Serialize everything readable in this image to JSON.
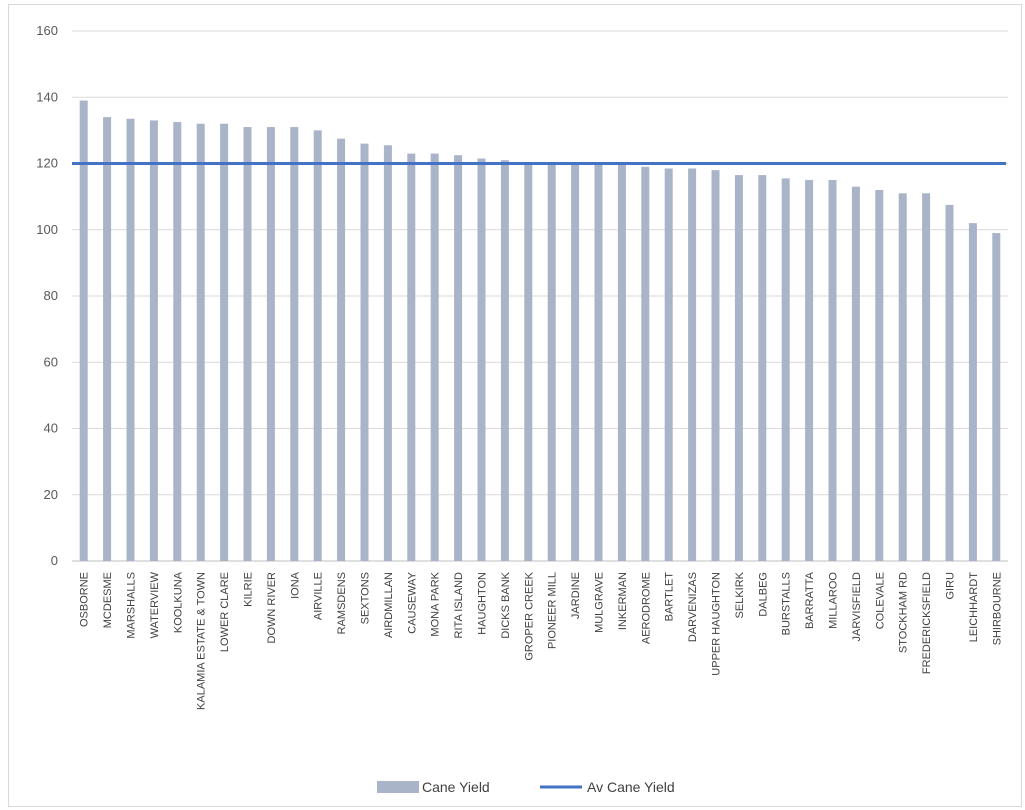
{
  "chart_data": {
    "type": "bar",
    "categories": [
      "OSBORNE",
      "MCDESME",
      "MARSHALLS",
      "WATERVIEW",
      "KOOLKUNA",
      "KALAMIA ESTATE & TOWN",
      "LOWER CLARE",
      "KILRIE",
      "DOWN RIVER",
      "IONA",
      "AIRVILLE",
      "RAMSDENS",
      "SEXTONS",
      "AIRDMILLAN",
      "CAUSEWAY",
      "MONA PARK",
      "RITA ISLAND",
      "HAUGHTON",
      "DICKS BANK",
      "GROPER CREEK",
      "PIONEER MILL",
      "JARDINE",
      "MULGRAVE",
      "INKERMAN",
      "AERODROME",
      "BARTLET",
      "DARVENIZAS",
      "UPPER HAUGHTON",
      "SELKIRK",
      "DALBEG",
      "BURSTALLS",
      "BARRATTA",
      "MILLAROO",
      "JARVISFIELD",
      "COLEVALE",
      "STOCKHAM RD",
      "FREDERICKSFIELD",
      "GIRU",
      "LEICHHARDT",
      "SHIRBOURNE"
    ],
    "series": [
      {
        "name": "Cane Yield",
        "kind": "bar",
        "color": "#a9b4c8",
        "values": [
          139,
          134,
          133.5,
          133,
          132.5,
          132,
          132,
          131,
          131,
          131,
          130,
          127.5,
          126,
          125.5,
          123,
          123,
          122.5,
          121.5,
          121,
          120,
          120,
          120,
          120,
          120,
          119,
          118.5,
          118.5,
          118,
          116.5,
          116.5,
          115.5,
          115,
          115,
          113,
          112,
          111,
          111,
          107.5,
          102,
          99
        ]
      },
      {
        "name": "Av Cane Yield",
        "kind": "line",
        "color": "#4472c4",
        "value": 120
      }
    ],
    "yticks": [
      "0",
      "20",
      "40",
      "60",
      "80",
      "100",
      "120",
      "140",
      "160"
    ],
    "ylim": [
      0,
      160
    ],
    "grid": true,
    "legend": "bottom"
  }
}
